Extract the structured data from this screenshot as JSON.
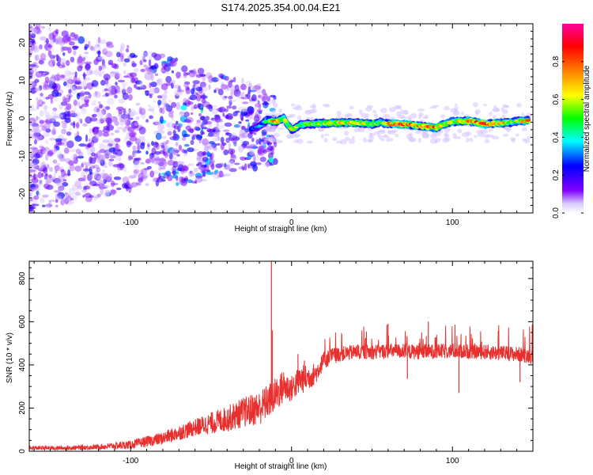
{
  "title": "S174.2025.354.00.04.E21",
  "colors": {
    "snr_line": "#e8302e",
    "axis": "#000000",
    "spec_low": "#c7b2f2"
  },
  "chart_data": [
    {
      "type": "heatmap",
      "name": "spectrogram",
      "xlabel": "Height of straight line (km)",
      "ylabel": "Frequency (Hz)",
      "xlim": [
        -163,
        150
      ],
      "ylim": [
        -25,
        25
      ],
      "xticks": [
        -100,
        0,
        100
      ],
      "yticks": [
        -20,
        -10,
        0,
        10,
        20
      ],
      "colorbar": {
        "label": "Normalized spectral amplitude",
        "range": [
          0,
          1
        ],
        "ticks": [
          "0.0",
          "0.2",
          "0.4",
          "0.6",
          "0.8"
        ],
        "tick_values": [
          0.0,
          0.2,
          0.4,
          0.6,
          0.8
        ],
        "colormap": [
          "#ffffff",
          "#7f00ff",
          "#0000ff",
          "#00ffff",
          "#00ff00",
          "#ffff00",
          "#ff7f00",
          "#ff0000",
          "#ff00a0"
        ]
      },
      "ridge": [
        {
          "x": -25,
          "f": -3.0,
          "a": 0.3
        },
        {
          "x": -20,
          "f": -2.0,
          "a": 0.35
        },
        {
          "x": -15,
          "f": -0.5,
          "a": 0.55
        },
        {
          "x": -10,
          "f": -1.0,
          "a": 0.85
        },
        {
          "x": -5,
          "f": 0.0,
          "a": 0.7
        },
        {
          "x": 0,
          "f": -3.0,
          "a": 0.7
        },
        {
          "x": 5,
          "f": -1.8,
          "a": 0.6
        },
        {
          "x": 10,
          "f": -1.5,
          "a": 0.65
        },
        {
          "x": 20,
          "f": -1.3,
          "a": 0.7
        },
        {
          "x": 30,
          "f": -1.2,
          "a": 0.8
        },
        {
          "x": 40,
          "f": -1.2,
          "a": 0.8
        },
        {
          "x": 50,
          "f": -1.5,
          "a": 0.7
        },
        {
          "x": 55,
          "f": -1.0,
          "a": 0.6
        },
        {
          "x": 60,
          "f": -1.5,
          "a": 0.8
        },
        {
          "x": 70,
          "f": -1.5,
          "a": 0.95
        },
        {
          "x": 80,
          "f": -2.0,
          "a": 0.8
        },
        {
          "x": 90,
          "f": -2.5,
          "a": 0.95
        },
        {
          "x": 95,
          "f": -1.5,
          "a": 0.7
        },
        {
          "x": 100,
          "f": -0.8,
          "a": 0.7
        },
        {
          "x": 110,
          "f": -0.7,
          "a": 0.85
        },
        {
          "x": 120,
          "f": -1.5,
          "a": 0.95
        },
        {
          "x": 130,
          "f": -1.3,
          "a": 0.8
        },
        {
          "x": 140,
          "f": -0.8,
          "a": 0.7
        },
        {
          "x": 147,
          "f": -0.6,
          "a": 0.85
        }
      ]
    },
    {
      "type": "line",
      "name": "snr",
      "xlabel": "Height of straight line (km)",
      "ylabel": "SNR (10 * v/v)",
      "xlim": [
        -163,
        150
      ],
      "ylim": [
        0,
        880
      ],
      "xticks": [
        -100,
        0,
        100
      ],
      "yticks": [
        0,
        200,
        400,
        600,
        800
      ],
      "envelope": {
        "x": [
          -163,
          -140,
          -120,
          -100,
          -80,
          -60,
          -50,
          -40,
          -30,
          -20,
          -15,
          -10,
          -5,
          0,
          5,
          10,
          15,
          20,
          25,
          30,
          40,
          50,
          60,
          80,
          100,
          120,
          140,
          150
        ],
        "mean": [
          15,
          15,
          20,
          30,
          60,
          110,
          130,
          150,
          180,
          200,
          230,
          260,
          300,
          290,
          330,
          340,
          360,
          420,
          440,
          450,
          460,
          460,
          465,
          460,
          465,
          460,
          450,
          440
        ],
        "noise": [
          10,
          10,
          12,
          20,
          30,
          40,
          50,
          60,
          70,
          80,
          80,
          80,
          80,
          60,
          70,
          60,
          50,
          40,
          40,
          35,
          35,
          35,
          35,
          35,
          35,
          35,
          35,
          35
        ]
      },
      "spikes": [
        {
          "x": -12.5,
          "y": 880
        },
        {
          "x": -12.0,
          "y": 560
        },
        {
          "x": 4,
          "y": 450
        },
        {
          "x": 8,
          "y": 420
        },
        {
          "x": 60,
          "y": 590
        },
        {
          "x": 72,
          "y": 335
        },
        {
          "x": 85,
          "y": 600
        },
        {
          "x": 104,
          "y": 270
        },
        {
          "x": 142,
          "y": 320
        }
      ]
    }
  ]
}
